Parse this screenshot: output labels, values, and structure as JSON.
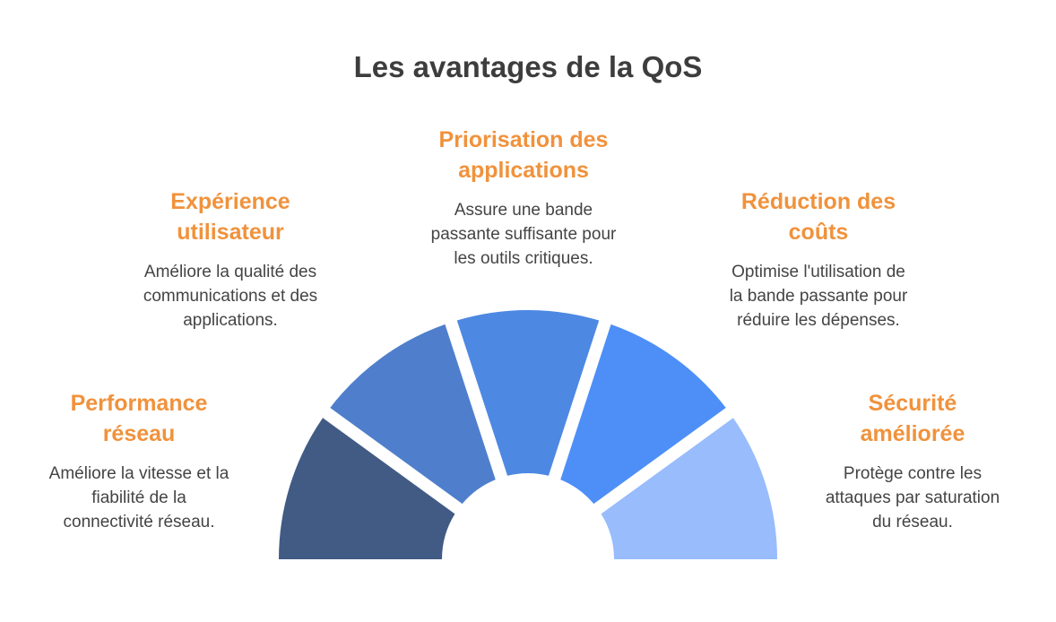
{
  "title": "Les avantages de la QoS",
  "benefits": [
    {
      "heading": [
        "Performance",
        "réseau"
      ],
      "desc": [
        "Améliore la vitesse et la",
        "fiabilité de la",
        "connectivité réseau."
      ],
      "color": "#415b85"
    },
    {
      "heading": [
        "Expérience",
        "utilisateur"
      ],
      "desc": [
        "Améliore la qualité des",
        "communications et des",
        "applications."
      ],
      "color": "#4f7fcc"
    },
    {
      "heading": [
        "Priorisation des",
        "applications"
      ],
      "desc": [
        "Assure une bande",
        "passante suffisante pour",
        "les outils critiques."
      ],
      "color": "#4d88e3"
    },
    {
      "heading": [
        "Réduction des",
        "coûts"
      ],
      "desc": [
        "Optimise l'utilisation de",
        "la bande passante pour",
        "réduire les dépenses."
      ],
      "color": "#4d8ff7"
    },
    {
      "heading": [
        "Sécurité",
        "améliorée"
      ],
      "desc": [
        "Protège contre les",
        "attaques par saturation",
        "du réseau."
      ],
      "color": "#98bcfc"
    }
  ]
}
